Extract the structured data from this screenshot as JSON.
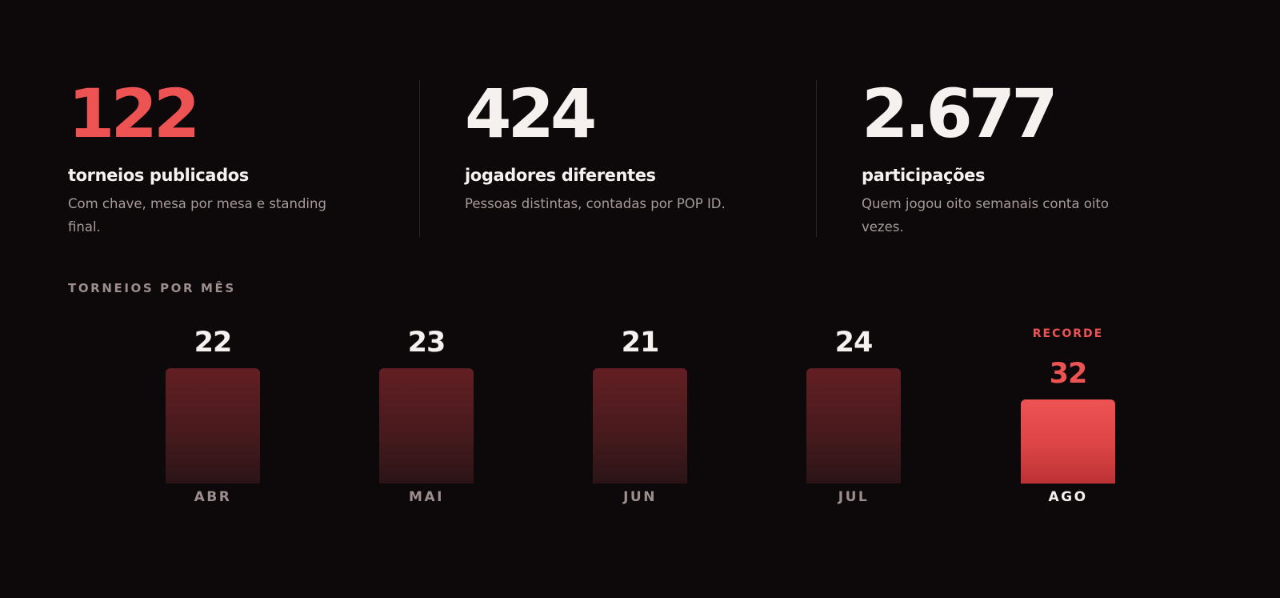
{
  "colors": {
    "background": "#0d0809",
    "accent": "#ee5354",
    "text_primary": "#f6f1ef",
    "text_muted": "#a89c9a",
    "bar_muted": "#4b1b1e"
  },
  "stats": [
    {
      "number": "122",
      "title": "torneios publicados",
      "description": "Com chave, mesa por mesa e standing final.",
      "color": "#ee5354"
    },
    {
      "number": "424",
      "title": "jogadores diferentes",
      "description": "Pessoas distintas, contadas por POP ID.",
      "color": "#f6f1ef"
    },
    {
      "number": "2.677",
      "title": "participações",
      "description": "Quem jogou oito semanais conta oito vezes.",
      "color": "#f6f1ef"
    }
  ],
  "chart_section": {
    "label": "TORNEIOS POR MÊS"
  },
  "chart_data": {
    "type": "bar",
    "title": "TORNEIOS POR MÊS",
    "categories": [
      "ABR",
      "MAI",
      "JUN",
      "JUL",
      "AGO"
    ],
    "values": [
      22,
      23,
      21,
      24,
      32
    ],
    "highlight_index": 4,
    "highlight_tag": "RECORDE"
  }
}
